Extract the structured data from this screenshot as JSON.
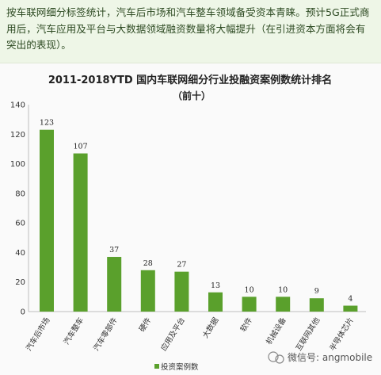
{
  "intro": {
    "text": "按车联网细分标签统计，汽车后市场和汽车整车领域备受资本青睐。预计5G正式商用后，汽车应用及平台与大数据领域融资数量将大幅提升（在引进资本方面将会有突出的表现）。"
  },
  "chart_data": {
    "type": "bar",
    "title": "2011-2018YTD 国内车联网细分行业投融资案例数统计排名",
    "subtitle": "（前十）",
    "categories": [
      "汽车后市场",
      "汽车整车",
      "汽车零部件",
      "硬件",
      "应用及平台",
      "大数据",
      "软件",
      "机械设备",
      "互联网其他",
      "半导体芯片"
    ],
    "series": [
      {
        "name": "投资案例数",
        "values": [
          123,
          107,
          37,
          28,
          27,
          13,
          10,
          10,
          9,
          4
        ]
      }
    ],
    "ylim": [
      0,
      140
    ],
    "yticks": [
      0,
      20,
      40,
      60,
      80,
      100,
      120,
      140
    ],
    "legend_position": "bottom",
    "bar_color": "#5aa02c",
    "grid": false
  },
  "watermark": {
    "text": "微信号: angmobile"
  }
}
